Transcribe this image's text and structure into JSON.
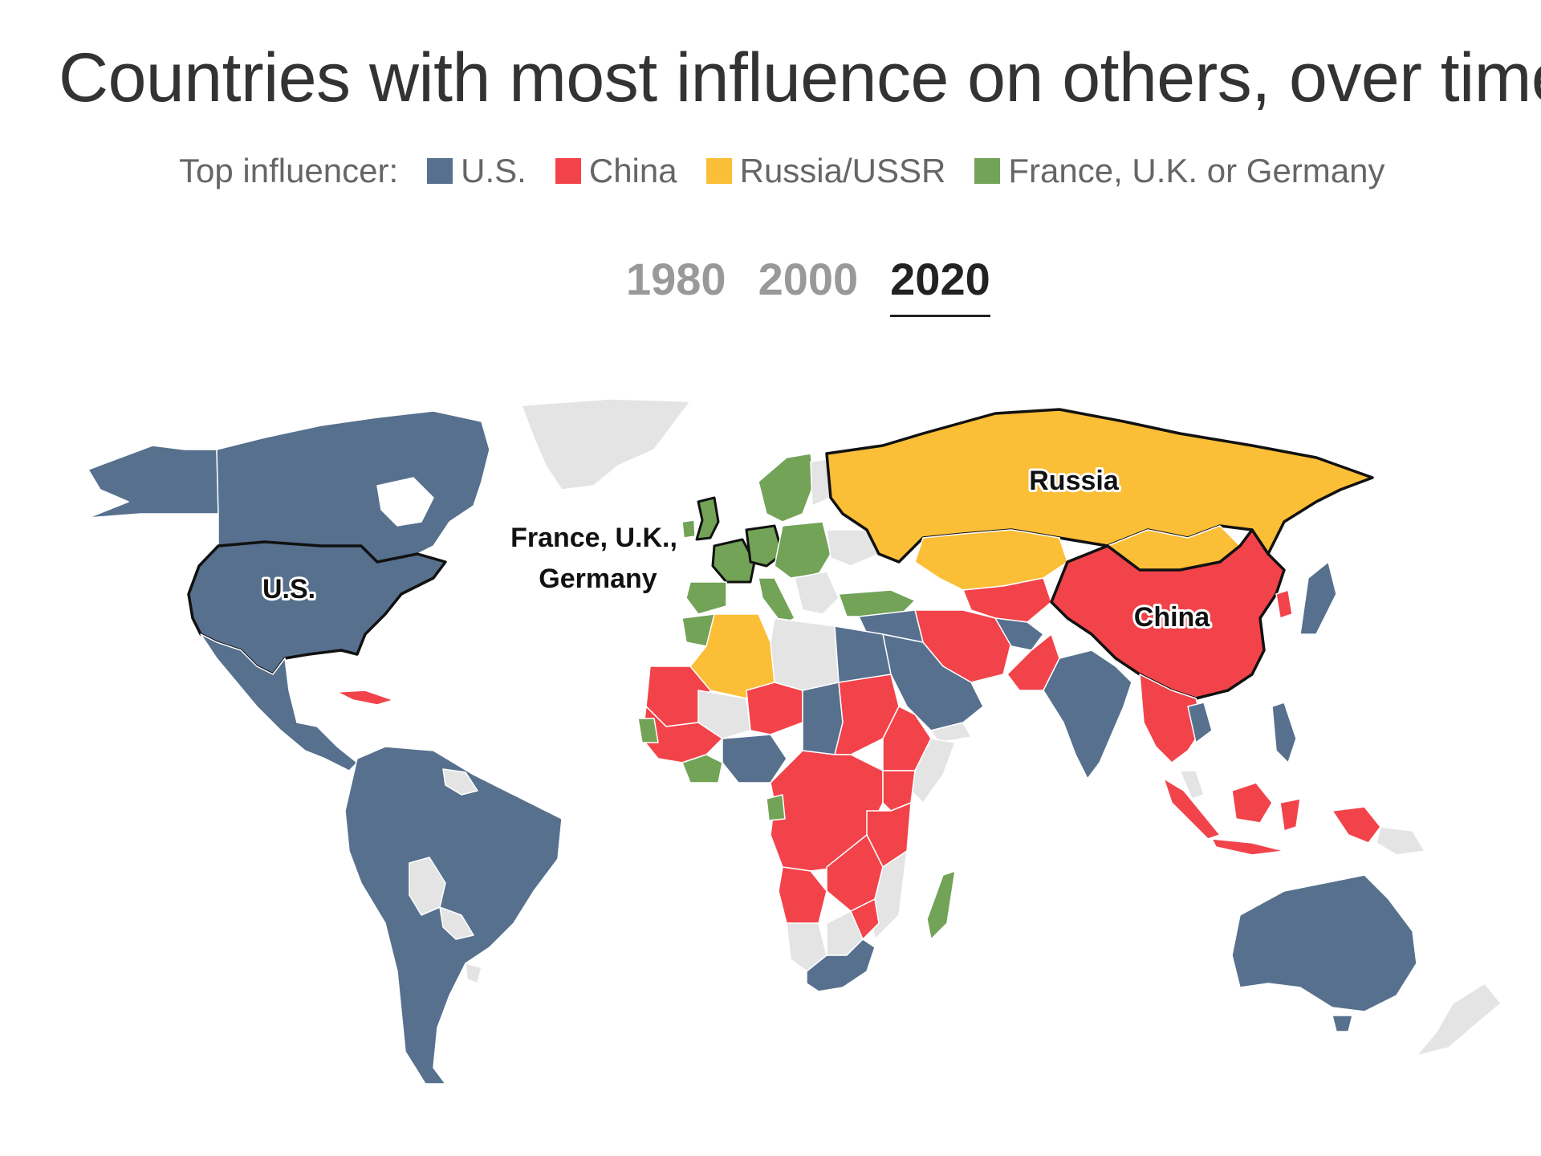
{
  "title": "Countries with most influence on others, over time",
  "legend": {
    "lead": "Top influencer:",
    "items": [
      {
        "label": "U.S.",
        "color": "#56708E"
      },
      {
        "label": "China",
        "color": "#F2434A"
      },
      {
        "label": "Russia/USSR",
        "color": "#FBBE37"
      },
      {
        "label": "France, U.K. or Germany",
        "color": "#72A357"
      }
    ]
  },
  "tabs": {
    "items": [
      "1980",
      "2000",
      "2020"
    ],
    "selected": "2020"
  },
  "map": {
    "colors": {
      "us": "#56708E",
      "china": "#F2434A",
      "russia": "#FBBE37",
      "europe": "#72A357",
      "none": "#E4E4E4"
    },
    "labels": {
      "us": "U.S.",
      "russia": "Russia",
      "china": "China",
      "europe_line1": "France, U.K.,",
      "europe_line2": "Germany"
    }
  }
}
